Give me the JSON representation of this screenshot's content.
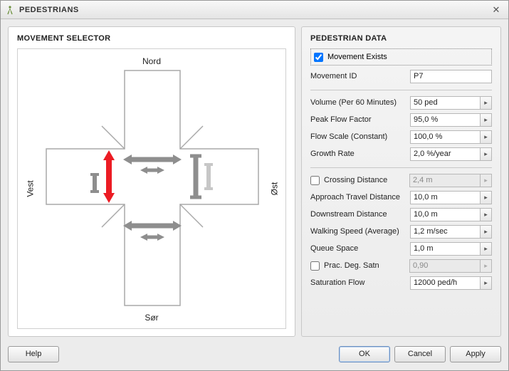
{
  "window": {
    "title": "PEDESTRIANS"
  },
  "left_panel": {
    "title": "MOVEMENT SELECTOR"
  },
  "diagram": {
    "labels": {
      "north": "Nord",
      "south": "Sør",
      "west": "Vest",
      "east": "Øst"
    },
    "road_fill": "#ffffff",
    "road_stroke": "#a9a9a9",
    "arrow_gray": "#8e8e8e",
    "arrow_gray_light": "#c7c7c7",
    "arrow_red": "#ec1c24"
  },
  "right_panel": {
    "title": "PEDESTRIAN DATA",
    "movement_exists": {
      "label": "Movement Exists",
      "checked": true
    },
    "movement_id": {
      "label": "Movement ID",
      "value": "P7"
    },
    "group1": [
      {
        "label": "Volume (Per 60 Minutes)",
        "value": "50 ped"
      },
      {
        "label": "Peak Flow Factor",
        "value": "95,0 %"
      },
      {
        "label": "Flow Scale (Constant)",
        "value": "100,0 %"
      },
      {
        "label": "Growth Rate",
        "value": "2,0 %/year"
      }
    ],
    "group2": [
      {
        "label": "Crossing Distance",
        "value": "2,4 m",
        "checkbox": true,
        "checked": false,
        "disabled": true
      },
      {
        "label": "Approach Travel Distance",
        "value": "10,0 m"
      },
      {
        "label": "Downstream Distance",
        "value": "10,0 m"
      },
      {
        "label": "Walking Speed (Average)",
        "value": "1,2 m/sec"
      },
      {
        "label": "Queue Space",
        "value": "1,0 m"
      },
      {
        "label": "Prac. Deg. Satn",
        "value": "0,90",
        "checkbox": true,
        "checked": false,
        "disabled": true
      },
      {
        "label": "Saturation Flow",
        "value": "12000 ped/h"
      }
    ]
  },
  "footer": {
    "help": "Help",
    "ok": "OK",
    "cancel": "Cancel",
    "apply": "Apply"
  }
}
